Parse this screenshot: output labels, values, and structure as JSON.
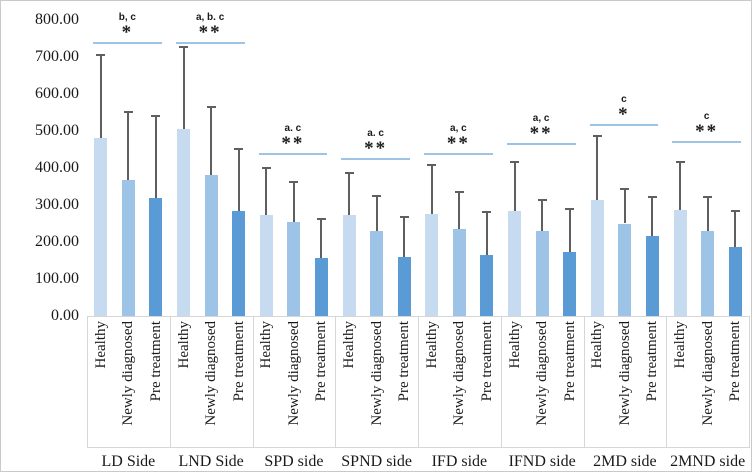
{
  "figure": {
    "border_color": "#c9c9c9",
    "background": "#ffffff"
  },
  "chart_data": {
    "type": "bar",
    "title": "",
    "xlabel": "",
    "ylabel": "",
    "ylim": [
      0,
      800
    ],
    "ytick_step": 100,
    "grid": false,
    "legend_position": "none",
    "yticks": [
      "800.00",
      "700.00",
      "600.00",
      "500.00",
      "400.00",
      "300.00",
      "200.00",
      "100.00",
      "0.00"
    ],
    "ytick_values": [
      800,
      700,
      600,
      500,
      400,
      300,
      200,
      100,
      0
    ],
    "series_labels": [
      "Healthy",
      "Newly diagnosed",
      "Pre treatment"
    ],
    "series_colors": [
      "#c6dbf0",
      "#9dc3e6",
      "#5b9bd5"
    ],
    "error_bar_color": "#5f5f5f",
    "sig_line_color": "#9dc3e6",
    "groups": [
      {
        "label": "LD Side",
        "values": [
          480,
          368,
          318
        ],
        "error_tops": [
          708,
          553,
          542
        ],
        "sig": {
          "letters": "b, c",
          "stars": "*",
          "line_value": 740
        }
      },
      {
        "label": "LND Side",
        "values": [
          505,
          382,
          285
        ],
        "error_tops": [
          730,
          568,
          455
        ],
        "sig": {
          "letters": "a, b. c",
          "stars": "**",
          "line_value": 740
        }
      },
      {
        "label": "SPD side",
        "values": [
          273,
          255,
          158
        ],
        "error_tops": [
          404,
          365,
          266
        ],
        "sig": {
          "letters": "a. c",
          "stars": "**",
          "line_value": 441
        }
      },
      {
        "label": "SPND side",
        "values": [
          274,
          231,
          160
        ],
        "error_tops": [
          389,
          328,
          270
        ],
        "sig": {
          "letters": "a. c",
          "stars": "**",
          "line_value": 427
        }
      },
      {
        "label": "IFD side",
        "values": [
          277,
          235,
          166
        ],
        "error_tops": [
          411,
          338,
          283
        ],
        "sig": {
          "letters": "a, c",
          "stars": "**",
          "line_value": 441
        }
      },
      {
        "label": "IFND side",
        "values": [
          285,
          229,
          172
        ],
        "error_tops": [
          420,
          316,
          292
        ],
        "sig": {
          "letters": "a, c",
          "stars": "**",
          "line_value": 468
        }
      },
      {
        "label": "2MD side",
        "values": [
          313,
          250,
          215
        ],
        "error_tops": [
          490,
          347,
          325
        ],
        "sig": {
          "letters": "c",
          "stars": "*",
          "line_value": 519
        }
      },
      {
        "label": "2MND side",
        "values": [
          286,
          229,
          187
        ],
        "error_tops": [
          419,
          325,
          286
        ],
        "sig": {
          "letters": "c",
          "stars": "**",
          "line_value": 472
        }
      }
    ]
  }
}
